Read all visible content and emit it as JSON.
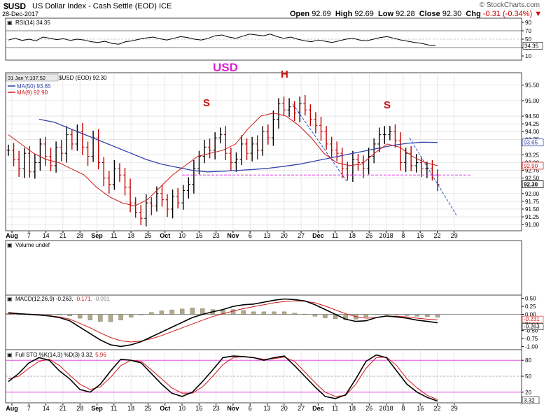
{
  "header": {
    "symbol": "$USD",
    "description": "US Dollar Index - Cash Settle (EOD)",
    "exchange": "ICE",
    "date": "28-Dec-2017",
    "watermark": "© StockCharts.com",
    "open_label": "Open",
    "open": "92.69",
    "high_label": "High",
    "high": "92.69",
    "low_label": "Low",
    "low": "92.28",
    "close_label": "Close",
    "close": "92.30",
    "chg_label": "Chg",
    "chg": "-0.31 (-0.34%)",
    "chg_arrow": "▼"
  },
  "colors": {
    "price": "#000000",
    "ma50": "#3344aa",
    "ma9": "#d01818",
    "annot": "#cc1111",
    "usd": "#e020d0",
    "support": "#dd33dd",
    "trend": "#3355cc",
    "volbar": "#b0a888",
    "grid": "#d8d8d8"
  },
  "chart_data": [
    {
      "type": "line",
      "title": "RSI(14) 34.35",
      "ylim": [
        0,
        100
      ],
      "y_ticks": [
        "90",
        "70",
        "50",
        "30",
        "10"
      ],
      "current_label": "34.35",
      "series": [
        {
          "name": "RSI(14)",
          "values": [
            48,
            52,
            47,
            50,
            46,
            55,
            52,
            49,
            51,
            47,
            50,
            48,
            44,
            42,
            45,
            40,
            38,
            44,
            46,
            50,
            53,
            55,
            51,
            48,
            52,
            56,
            54,
            50,
            48,
            52,
            58,
            60,
            55,
            52,
            57,
            62,
            60,
            58,
            62,
            56,
            52,
            55,
            50,
            46,
            44,
            48,
            45,
            42,
            46,
            50,
            52,
            48,
            46,
            50,
            54,
            56,
            52,
            48,
            45,
            42,
            40,
            36,
            34.35
          ]
        }
      ]
    },
    {
      "type": "line",
      "ylim": [
        90.8,
        95.9
      ],
      "y_ticks": [
        "95.50",
        "95.00",
        "94.50",
        "94.25",
        "94.00",
        "93.75",
        "93.25",
        "93.00",
        "92.75",
        "92.50",
        "92.00",
        "91.75",
        "91.50",
        "91.25",
        "91.00"
      ],
      "price_labels": {
        "ma50": "93.65",
        "ma9": "92.90",
        "close": "92.30"
      },
      "x_labels": [
        "Aug",
        "7",
        "14",
        "21",
        "28",
        "Sep",
        "11",
        "18",
        "25",
        "Oct",
        "10",
        "16",
        "23",
        "Nov",
        "6",
        "13",
        "20",
        "27",
        "Dec",
        "11",
        "18",
        "26",
        "2018",
        "8",
        "16",
        "22",
        "29"
      ],
      "crosshair_label": "31 Jan Y:137.52",
      "legend": {
        "price": "$USD (EOD) 92.30",
        "ma50": "MA(50) 93.65",
        "ma9": "MA(9) 92.90"
      },
      "annotations": {
        "usd": "USD",
        "left_shoulder": "S",
        "head": "H",
        "right_shoulder": "S"
      },
      "support_level": 92.6,
      "series": [
        {
          "name": "$USD (EOD)",
          "values": [
            93.4,
            93.1,
            92.8,
            93.3,
            92.7,
            93.0,
            93.6,
            93.2,
            92.9,
            93.5,
            93.3,
            93.9,
            93.6,
            94.0,
            93.5,
            93.2,
            93.8,
            93.0,
            92.5,
            92.3,
            92.8,
            92.6,
            92.2,
            91.7,
            91.4,
            91.2,
            91.7,
            91.6,
            92.0,
            91.8,
            91.5,
            91.9,
            91.7,
            92.1,
            92.3,
            92.8,
            93.2,
            93.5,
            93.4,
            93.8,
            93.9,
            93.3,
            93.0,
            93.1,
            93.6,
            93.3,
            93.6,
            93.4,
            94.0,
            93.8,
            94.4,
            94.9,
            94.7,
            94.8,
            94.6,
            94.9,
            94.7,
            94.4,
            94.2,
            94.0,
            93.6,
            93.4,
            93.3,
            92.8,
            92.6,
            93.1,
            93.0,
            92.8,
            93.2,
            93.6,
            93.9,
            93.9,
            94.0,
            93.7,
            93.0,
            93.3,
            92.9,
            93.0,
            92.8,
            92.8,
            92.6,
            92.3
          ]
        },
        {
          "name": "MA(50)",
          "values": [
            null,
            null,
            94.4,
            94.3,
            94.1,
            93.9,
            93.7,
            93.5,
            93.3,
            93.1,
            92.95,
            92.85,
            92.75,
            92.7,
            92.72,
            92.75,
            92.78,
            92.82,
            92.88,
            92.95,
            93.05,
            93.15,
            93.25,
            93.35,
            93.45,
            93.55,
            93.62,
            93.66,
            93.65
          ]
        },
        {
          "name": "MA(9)",
          "values": [
            93.9,
            93.6,
            93.3,
            93.1,
            93.0,
            92.8,
            92.6,
            92.2,
            91.9,
            91.7,
            91.6,
            91.8,
            92.2,
            92.6,
            92.9,
            93.2,
            93.3,
            93.4,
            93.6,
            94.1,
            94.5,
            94.6,
            94.5,
            94.2,
            93.8,
            93.3,
            93.0,
            92.9,
            92.95,
            93.3,
            93.6,
            93.5,
            93.2,
            93.0,
            92.9
          ]
        }
      ]
    },
    {
      "type": "bar",
      "title": "Volume undef"
    },
    {
      "type": "line",
      "title": "MACD(12,26,9)",
      "title_values": [
        "-0.263",
        "-0.171",
        "-0.091"
      ],
      "ylim": [
        -1.1,
        0.6
      ],
      "y_ticks": [
        "0.50",
        "0.25",
        "0.00",
        "-0.25",
        "-0.50",
        "-0.75",
        "-1.00"
      ],
      "current_labels": [
        "-0.231",
        "-0.263"
      ],
      "series": [
        {
          "name": "MACD",
          "values": [
            0.05,
            0.02,
            0.0,
            -0.02,
            -0.05,
            -0.1,
            -0.2,
            -0.4,
            -0.6,
            -0.8,
            -0.95,
            -1.0,
            -0.95,
            -0.85,
            -0.7,
            -0.55,
            -0.4,
            -0.25,
            -0.1,
            0.0,
            0.08,
            0.15,
            0.25,
            0.3,
            0.32,
            0.38,
            0.44,
            0.48,
            0.46,
            0.42,
            0.3,
            0.15,
            0.0,
            -0.15,
            -0.22,
            -0.2,
            -0.1,
            -0.05,
            -0.08,
            -0.12,
            -0.18,
            -0.22,
            -0.263
          ]
        },
        {
          "name": "Signal",
          "values": [
            0.02,
            0.02,
            0.01,
            -0.01,
            -0.04,
            -0.08,
            -0.15,
            -0.28,
            -0.42,
            -0.58,
            -0.72,
            -0.82,
            -0.86,
            -0.83,
            -0.76,
            -0.66,
            -0.54,
            -0.42,
            -0.3,
            -0.18,
            -0.07,
            0.02,
            0.1,
            0.18,
            0.24,
            0.3,
            0.36,
            0.4,
            0.42,
            0.41,
            0.36,
            0.26,
            0.14,
            0.02,
            -0.07,
            -0.12,
            -0.1,
            -0.06,
            -0.06,
            -0.08,
            -0.12,
            -0.15,
            -0.171
          ]
        },
        {
          "name": "Histogram",
          "values": [
            0.03,
            0.0,
            -0.01,
            -0.01,
            -0.01,
            -0.02,
            -0.05,
            -0.12,
            -0.18,
            -0.22,
            -0.23,
            -0.18,
            -0.09,
            -0.02,
            0.06,
            0.11,
            0.14,
            0.17,
            0.2,
            0.18,
            0.15,
            0.13,
            0.15,
            0.12,
            0.08,
            0.08,
            0.08,
            0.08,
            0.04,
            0.01,
            -0.06,
            -0.11,
            -0.14,
            -0.17,
            -0.15,
            -0.08,
            0.0,
            0.01,
            -0.02,
            -0.04,
            -0.06,
            -0.07,
            -0.091
          ]
        }
      ]
    },
    {
      "type": "line",
      "title": "Full STO %K(14,3) %D(3)",
      "title_values": [
        "3.32",
        "5.96"
      ],
      "ylim": [
        0,
        100
      ],
      "y_ticks": [
        "80",
        "50",
        "20"
      ],
      "current_label": "3.32",
      "x_labels": [
        "Aug",
        "7",
        "14",
        "21",
        "28",
        "Sep",
        "11",
        "18",
        "25",
        "Oct",
        "10",
        "16",
        "23",
        "Nov",
        "6",
        "13",
        "20",
        "27",
        "Dec",
        "11",
        "18",
        "26",
        "2018",
        "8",
        "16",
        "22",
        "29"
      ],
      "series": [
        {
          "name": "%K",
          "values": [
            40,
            55,
            75,
            85,
            80,
            60,
            45,
            25,
            20,
            35,
            60,
            82,
            80,
            75,
            55,
            35,
            18,
            12,
            20,
            40,
            62,
            85,
            88,
            87,
            85,
            80,
            85,
            88,
            70,
            50,
            30,
            12,
            8,
            15,
            45,
            78,
            90,
            85,
            60,
            35,
            20,
            10,
            3.32
          ]
        },
        {
          "name": "%D",
          "values": [
            45,
            50,
            65,
            78,
            82,
            70,
            52,
            35,
            25,
            30,
            48,
            70,
            80,
            78,
            62,
            45,
            28,
            18,
            18,
            30,
            50,
            72,
            85,
            87,
            85,
            82,
            83,
            86,
            78,
            58,
            38,
            20,
            12,
            14,
            35,
            65,
            85,
            86,
            70,
            45,
            28,
            14,
            5.96
          ]
        }
      ]
    }
  ]
}
